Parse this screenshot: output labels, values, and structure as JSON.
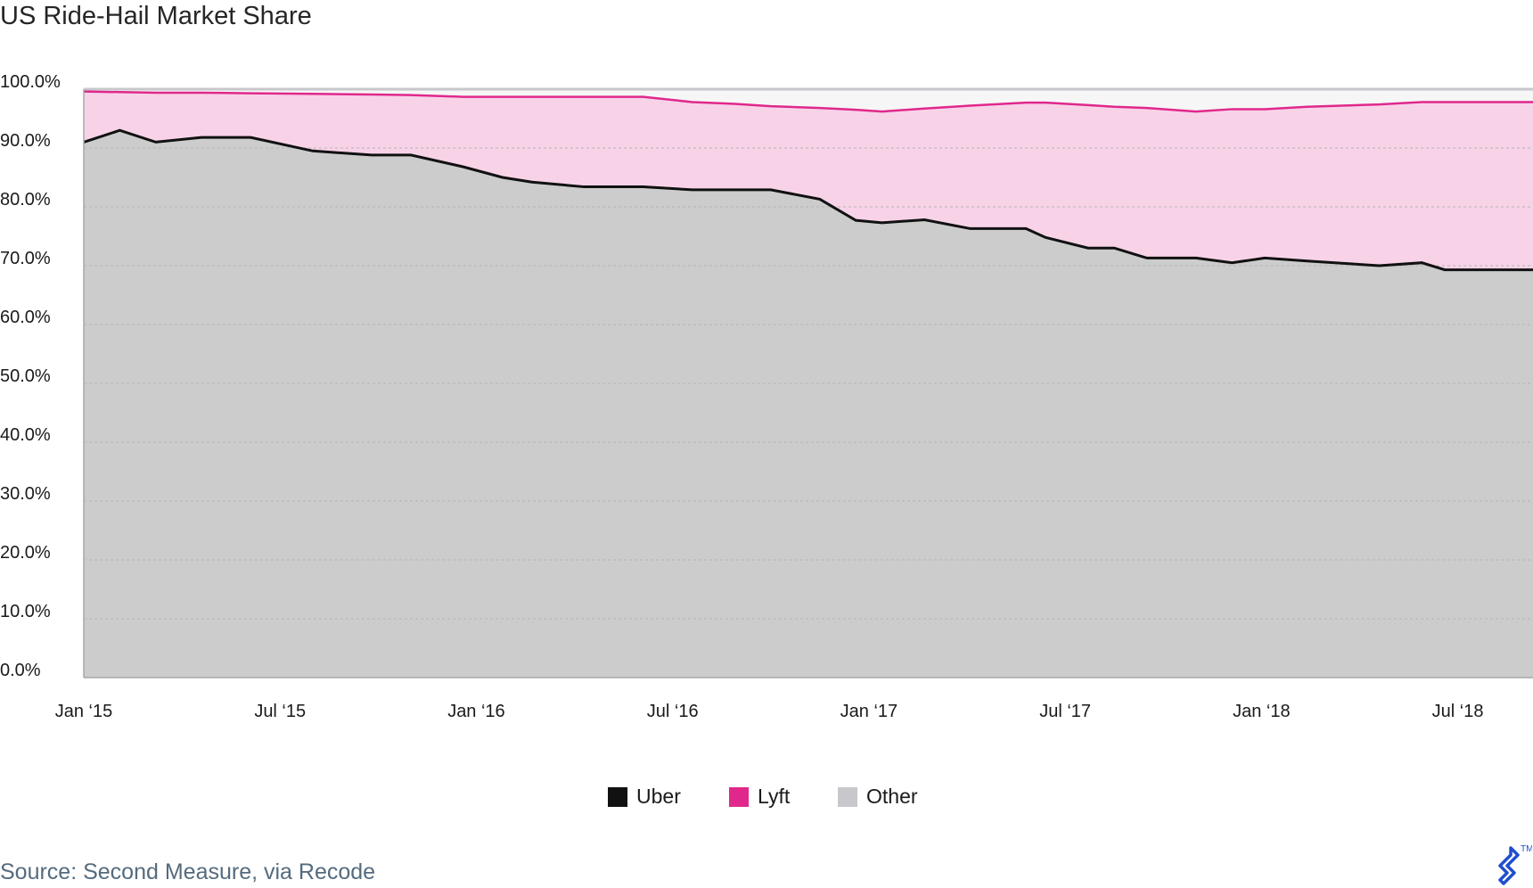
{
  "chart_data": {
    "type": "area",
    "title": "US Ride-Hail Market Share",
    "xlabel": "",
    "ylabel": "",
    "ylim": [
      0,
      100
    ],
    "y_tick_labels": [
      "0.0%",
      "10.0%",
      "20.0%",
      "30.0%",
      "40.0%",
      "50.0%",
      "60.0%",
      "70.0%",
      "80.0%",
      "90.0%",
      "100.0%"
    ],
    "x_tick_labels": [
      "Jan ‘15",
      "Jul ‘15",
      "Jan ‘16",
      "Jul ‘16",
      "Jan ‘17",
      "Jul ‘17",
      "Jan ‘18",
      "Jul ‘18"
    ],
    "x_tick_months": [
      0,
      6,
      12,
      18,
      24,
      30,
      36,
      42
    ],
    "x_months": [
      0,
      1.1,
      2.2,
      3.6,
      5.1,
      7.0,
      8.8,
      10.0,
      11.6,
      12.8,
      13.7,
      15.3,
      17.1,
      18.6,
      19.9,
      21.0,
      22.5,
      23.6,
      24.4,
      25.7,
      27.1,
      28.8,
      29.4,
      30.7,
      31.5,
      32.5,
      34.0,
      35.1,
      36.1,
      37.4,
      39.6,
      40.9,
      41.6,
      42.6,
      44.0,
      44.3
    ],
    "series": [
      {
        "name": "Uber",
        "color": "#111111",
        "fill": "#cccccc",
        "values": [
          91.0,
          93.0,
          91.0,
          91.8,
          91.8,
          89.5,
          88.8,
          88.8,
          86.8,
          85.0,
          84.2,
          83.4,
          83.4,
          82.9,
          82.9,
          82.9,
          81.3,
          77.7,
          77.3,
          77.8,
          76.3,
          76.3,
          74.8,
          73.0,
          73.0,
          71.3,
          71.3,
          70.5,
          71.3,
          70.8,
          70.0,
          70.5,
          69.3,
          69.3,
          69.3,
          69.3
        ]
      },
      {
        "name": "Lyft",
        "color": "#e0288c",
        "fill": "#f8d3e8",
        "cumulative": [
          99.6,
          99.5,
          99.4,
          99.4,
          99.3,
          99.2,
          99.1,
          99.0,
          98.7,
          98.7,
          98.7,
          98.7,
          98.7,
          97.8,
          97.5,
          97.1,
          96.8,
          96.5,
          96.2,
          96.7,
          97.2,
          97.7,
          97.7,
          97.3,
          97.0,
          96.8,
          96.2,
          96.6,
          96.6,
          97.0,
          97.4,
          97.8,
          97.8,
          97.8,
          97.8,
          97.8
        ]
      },
      {
        "name": "Other",
        "color": "#c8c8cc",
        "fill": "#f6f6f6",
        "cumulative": 100
      }
    ],
    "legend": "bottom-center",
    "grid": true
  },
  "footer": {
    "source": "Source: Second Measure, via Recode"
  },
  "logo": {
    "icon": "toptal-logo-icon",
    "mark": "TM",
    "color": "#204ecf"
  }
}
